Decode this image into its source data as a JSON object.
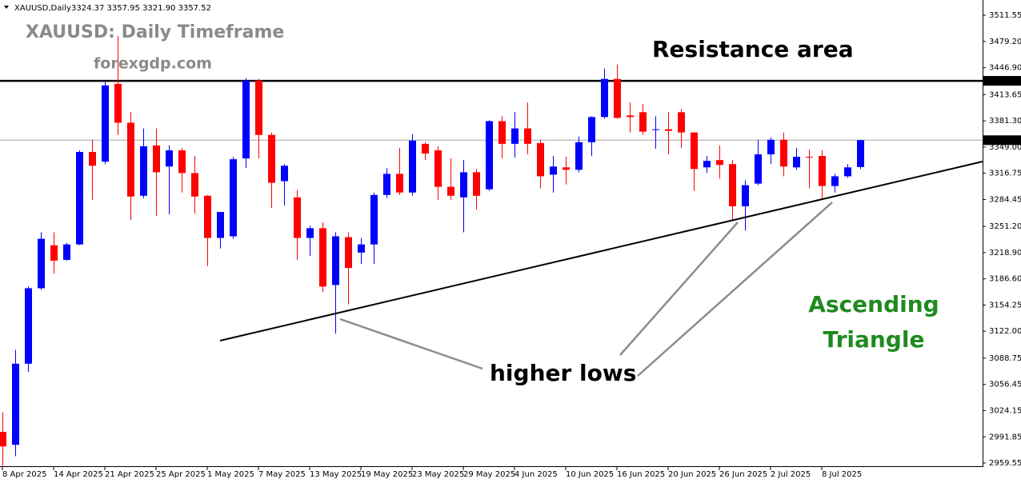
{
  "chart_data": {
    "type": "candlestick",
    "header": "XAUUSD,Daily",
    "header_values": "3324.37 3357.95 3321.90 3357.52",
    "categories": [
      "8 Apr 2025",
      null,
      null,
      null,
      "14 Apr 2025",
      null,
      null,
      null,
      "21 Apr 2025",
      null,
      null,
      null,
      "25 Apr 2025",
      null,
      null,
      null,
      "1 May 2025",
      null,
      null,
      null,
      "7 May 2025",
      null,
      null,
      null,
      "13 May 2025",
      null,
      null,
      null,
      "19 May 2025",
      null,
      null,
      null,
      "23 May 2025",
      null,
      null,
      null,
      "29 May 2025",
      null,
      null,
      null,
      "4 Jun 2025",
      null,
      null,
      null,
      "10 Jun 2025",
      null,
      null,
      null,
      "16 Jun 2025",
      null,
      null,
      null,
      "20 Jun 2025",
      null,
      null,
      null,
      "26 Jun 2025",
      null,
      null,
      null,
      "2 Jul 2025",
      null,
      null,
      null,
      "8 Jul 2025",
      null,
      null,
      null
    ],
    "open": [
      2998,
      2982,
      3082,
      3175,
      3228,
      3210,
      3229,
      3343,
      3331,
      3427,
      3379,
      3289,
      3351,
      3325,
      3345,
      3317,
      3289,
      3237,
      3239,
      3335,
      3431,
      3364,
      3307,
      3287,
      3237,
      3249,
      3179,
      3238,
      3219,
      3229,
      3290,
      3316,
      3293,
      3353,
      3345,
      3300,
      3287,
      3318,
      3297,
      3381,
      3353,
      3372,
      3354,
      3315,
      3324,
      3321,
      3355,
      3386,
      3433,
      3388,
      3392,
      3370,
      3371,
      3392,
      3367,
      3324,
      3333,
      3328,
      3276,
      3304,
      3340,
      3358,
      3324,
      3337,
      3338,
      3301,
      3313,
      3324.37
    ],
    "high": [
      3022,
      3099,
      3177,
      3244,
      3244,
      3231,
      3345,
      3358,
      3431,
      3486,
      3392,
      3372,
      3372,
      3351,
      3348,
      3338,
      3290,
      3269,
      3337,
      3434,
      3433,
      3367,
      3328,
      3296,
      3252,
      3256,
      3244,
      3244,
      3237,
      3293,
      3323,
      3348,
      3365,
      3355,
      3350,
      3335,
      3333,
      3322,
      3382,
      3387,
      3392,
      3404,
      3358,
      3338,
      3337,
      3362,
      3387,
      3446,
      3451,
      3404,
      3402,
      3387,
      3392,
      3396,
      3367,
      3338,
      3351,
      3333,
      3308,
      3358,
      3361,
      3367,
      3348,
      3346,
      3345,
      3316,
      3328,
      3357.95
    ],
    "low": [
      2956,
      2968,
      3072,
      3173,
      3193,
      3209,
      3228,
      3284,
      3328,
      3364,
      3259,
      3286,
      3264,
      3266,
      3293,
      3267,
      3202,
      3224,
      3236,
      3323,
      3335,
      3274,
      3277,
      3210,
      3215,
      3170,
      3119,
      3155,
      3205,
      3205,
      3286,
      3290,
      3289,
      3333,
      3284,
      3284,
      3244,
      3272,
      3295,
      3335,
      3336,
      3340,
      3298,
      3293,
      3303,
      3318,
      3338,
      3384,
      3384,
      3367,
      3364,
      3347,
      3340,
      3348,
      3295,
      3317,
      3310,
      3259,
      3246,
      3302,
      3328,
      3313,
      3321,
      3298,
      3286,
      3293,
      3311,
      3321.9
    ],
    "close": [
      2980,
      3082,
      3175,
      3236,
      3209,
      3229,
      3343,
      3326,
      3425,
      3379,
      3288,
      3350,
      3318,
      3345,
      3317,
      3288,
      3237,
      3269,
      3334,
      3431,
      3364,
      3305,
      3326,
      3237,
      3249,
      3177,
      3239,
      3200,
      3229,
      3290,
      3316,
      3293,
      3357,
      3341,
      3300,
      3289,
      3318,
      3289,
      3381,
      3353,
      3372,
      3353,
      3313,
      3325,
      3321,
      3355,
      3386,
      3433,
      3385,
      3386,
      3368,
      3371,
      3369,
      3367,
      3322,
      3332,
      3327,
      3276,
      3302,
      3340,
      3358,
      3325,
      3337,
      3336,
      3301,
      3313,
      3324,
      3357.52
    ],
    "up_color": "#0000ff",
    "down_color": "#ff0000",
    "ylim": [
      2950.7,
      3530.3
    ],
    "yticks": [
      3511.55,
      {
        "value": 3479.2,
        "label": "3479.20"
      },
      {
        "value": 3446.9,
        "label": "3446.90"
      },
      3413.65,
      {
        "value": 3381.3,
        "label": "3381.30"
      },
      {
        "value": 3349,
        "label": "3349.00"
      },
      3316.75,
      3284.45,
      {
        "value": 3251.2,
        "label": "3251.20"
      },
      {
        "value": 3218.9,
        "label": "3218.90"
      },
      {
        "value": 3186.6,
        "label": "3186.60"
      },
      3154.25,
      {
        "value": 3122,
        "label": "3122.00"
      },
      3088.75,
      3056.45,
      3024.15,
      2991.85,
      2959.55
    ],
    "resistance_level": 3430.68,
    "price_level": 3357.52,
    "annotations": [
      "XAUUSD: Daily Timeframe",
      "forexgdp.com",
      "Resistance area",
      "higher lows",
      "Ascending",
      "Triangle"
    ]
  }
}
